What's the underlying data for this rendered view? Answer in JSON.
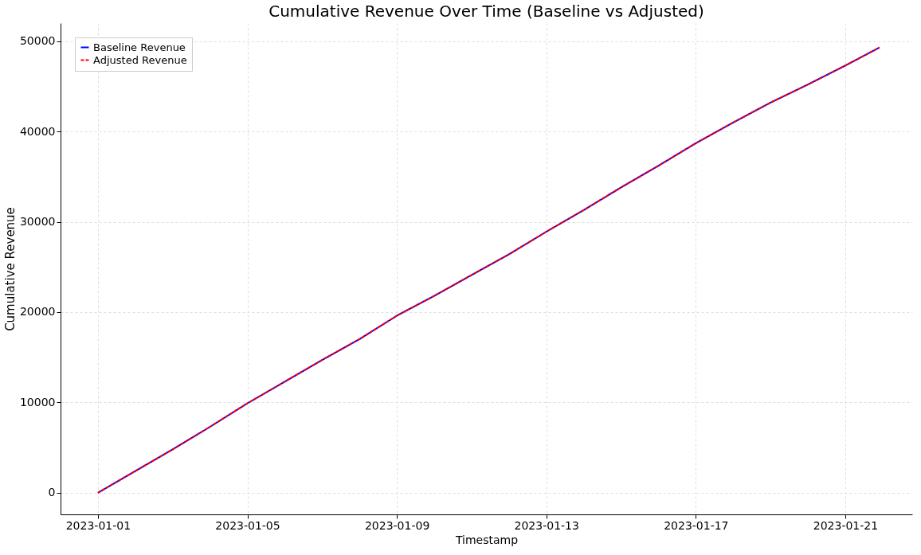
{
  "chart_data": {
    "type": "line",
    "title": "Cumulative Revenue Over Time (Baseline vs Adjusted)",
    "xlabel": "Timestamp",
    "ylabel": "Cumulative Revenue",
    "x": [
      "2023-01-01",
      "2023-01-02",
      "2023-01-03",
      "2023-01-04",
      "2023-01-05",
      "2023-01-06",
      "2023-01-07",
      "2023-01-08",
      "2023-01-09",
      "2023-01-10",
      "2023-01-11",
      "2023-01-12",
      "2023-01-13",
      "2023-01-14",
      "2023-01-15",
      "2023-01-16",
      "2023-01-17",
      "2023-01-18",
      "2023-01-19",
      "2023-01-20",
      "2023-01-21",
      "2023-01-21T22:00"
    ],
    "series": [
      {
        "name": "Baseline Revenue",
        "color": "#0000ff",
        "line_style": "solid",
        "values": [
          0,
          2400,
          4800,
          7300,
          9900,
          12300,
          14700,
          17000,
          19600,
          21800,
          24100,
          26400,
          28900,
          31300,
          33800,
          36200,
          38700,
          41000,
          43200,
          45200,
          47300,
          49300
        ]
      },
      {
        "name": "Adjusted Revenue",
        "color": "#ff0000",
        "line_style": "dashed",
        "values": [
          0,
          2400,
          4800,
          7300,
          9900,
          12300,
          14700,
          17000,
          19600,
          21800,
          24100,
          26400,
          28900,
          31300,
          33800,
          36200,
          38700,
          41000,
          43200,
          45200,
          47300,
          49300
        ]
      }
    ],
    "xlim": [
      "2022-12-31T00:00",
      "2023-01-22T19:00"
    ],
    "xticks": [
      "2023-01-01",
      "2023-01-05",
      "2023-01-09",
      "2023-01-13",
      "2023-01-17",
      "2023-01-21"
    ],
    "ylim": [
      -2400,
      52000
    ],
    "yticks": [
      0,
      10000,
      20000,
      30000,
      40000,
      50000
    ],
    "grid": true,
    "legend": "top left",
    "marker": "none"
  }
}
